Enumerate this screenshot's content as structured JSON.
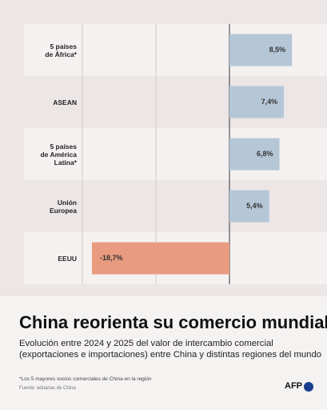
{
  "chart_data": {
    "type": "bar",
    "orientation": "horizontal",
    "title": "China reorienta su comercio mundial",
    "subtitle": "Evolución entre 2024 y 2025 del valor de intercambio comercial\n(exportaciones e importaciones) entre China y distintas regiones del mundo",
    "categories": [
      "5 países\nde África*",
      "ASEAN",
      "5 países\nde América\nLatina*",
      "Unión\nEuropea",
      "EEUU"
    ],
    "values": [
      8.5,
      7.4,
      6.8,
      5.4,
      -18.7
    ],
    "value_labels": [
      "8,5%",
      "7,4%",
      "6,8%",
      "5,4%",
      "-18,7%"
    ],
    "color": "#b5c7d7",
    "negative_color": "#e99b80",
    "xlim": [
      -20,
      10
    ],
    "xticks": [
      -20,
      -10,
      0
    ],
    "grid": true,
    "footnote": "*Los 5 mayores socios comerciales de China en la región",
    "source": "Fuente: aduanas de China",
    "logo": "AFP"
  }
}
